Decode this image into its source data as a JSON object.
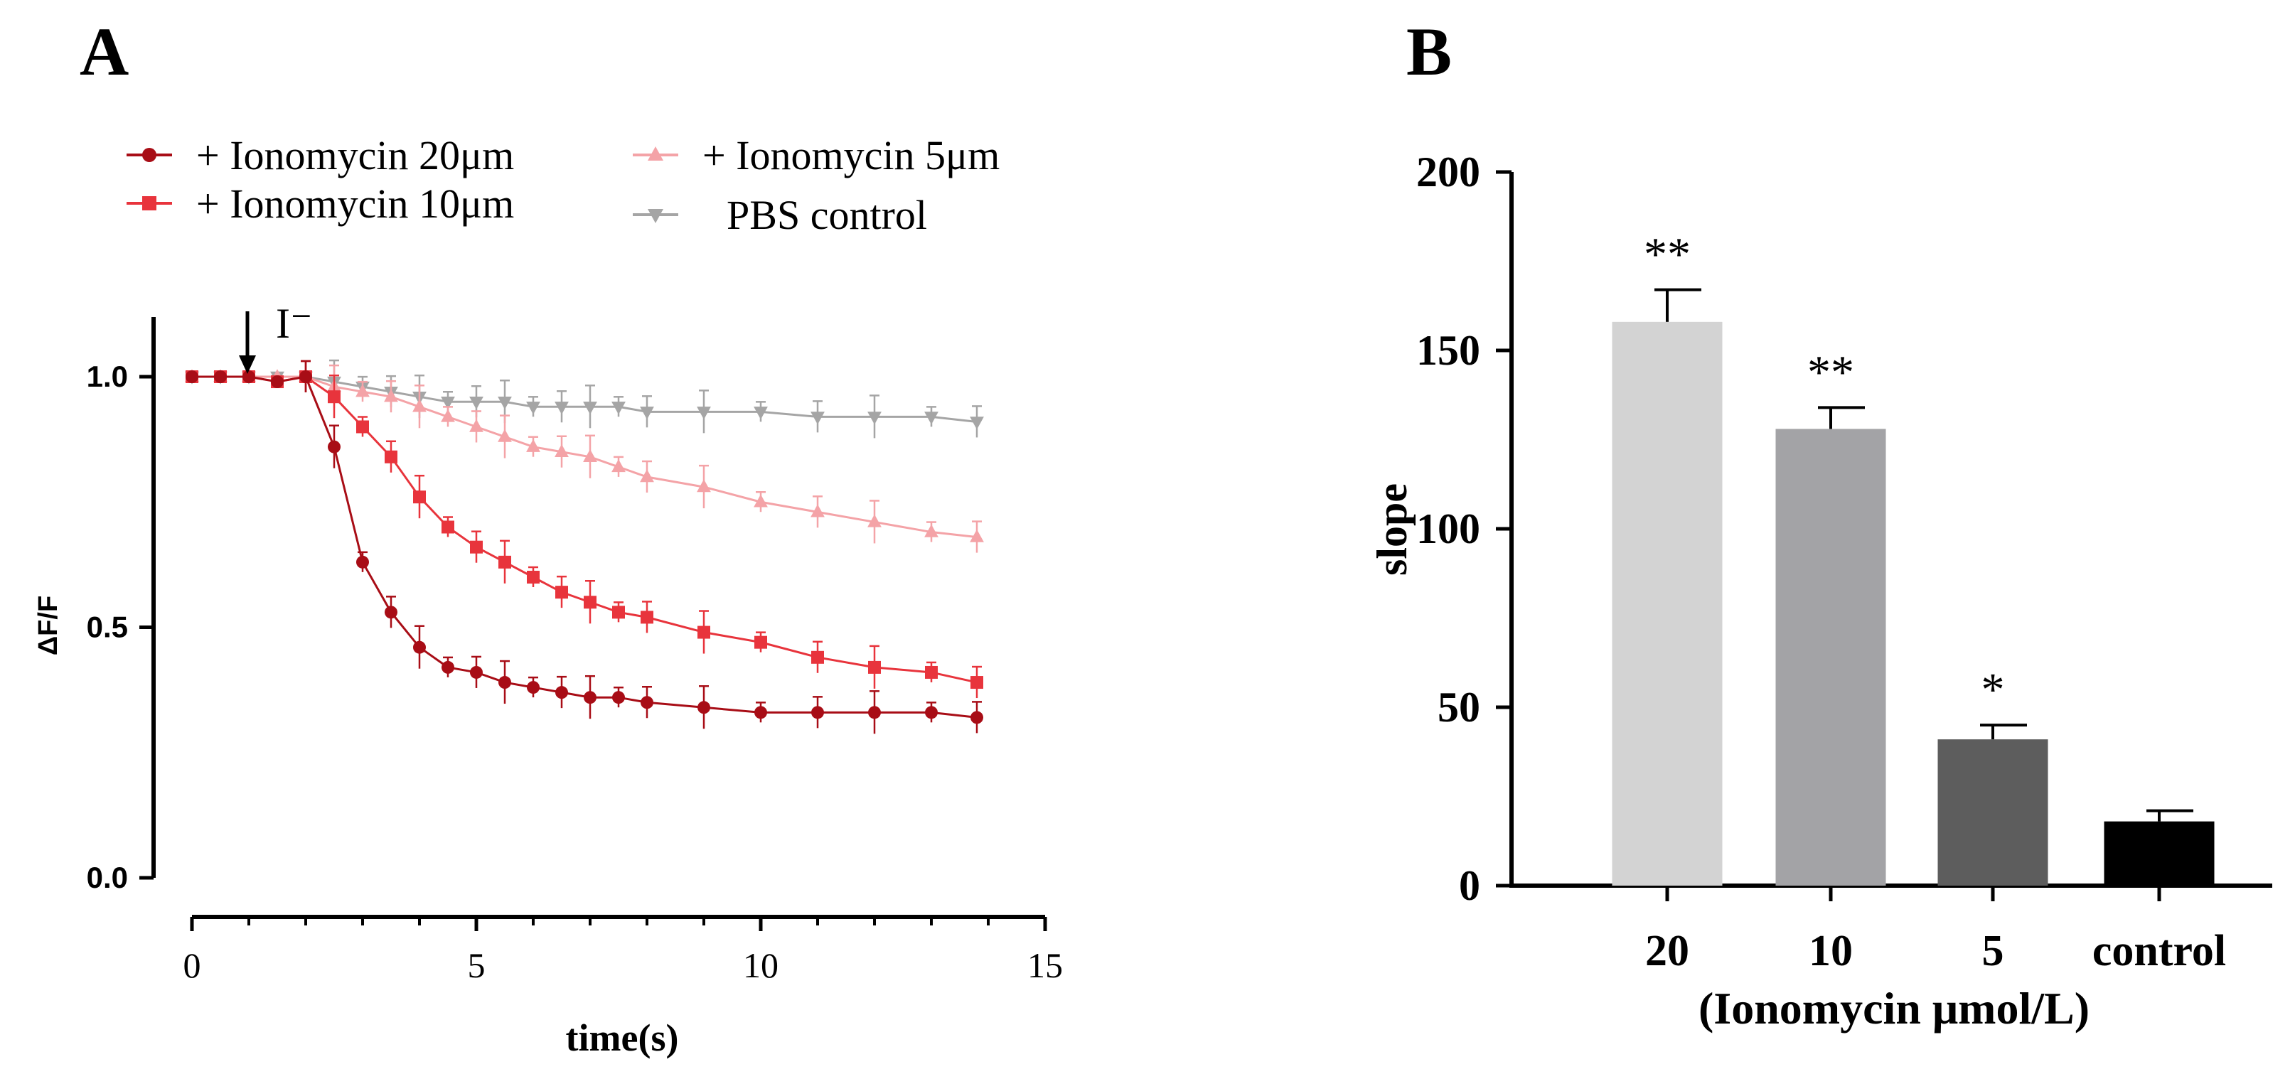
{
  "chart_data": [
    {
      "panel_label": "A",
      "type": "line",
      "xlabel": "time(s)",
      "ylabel": "ΔF/F",
      "xlim": [
        0,
        15
      ],
      "ylim": [
        0,
        1.1
      ],
      "xticks": [
        0,
        5,
        10,
        15
      ],
      "yticks": [
        "0.0",
        "0.5",
        "1.0"
      ],
      "grid": false,
      "legend_position": "top",
      "annotation": {
        "text": "I⁻",
        "x": 0.9,
        "marker": "down-arrow"
      },
      "series": [
        {
          "name": "+ Ionomycin 20μm",
          "color": "#a80d16",
          "marker": "circle",
          "x": [
            0,
            0.5,
            1,
            1.5,
            2,
            2.5,
            3,
            3.5,
            4,
            4.5,
            5,
            5.5,
            6,
            6.5,
            7,
            7.5,
            8,
            9,
            10,
            11,
            12,
            13,
            13.8
          ],
          "y": [
            1.0,
            1.0,
            1.0,
            0.99,
            1.0,
            0.86,
            0.63,
            0.53,
            0.46,
            0.42,
            0.41,
            0.39,
            0.38,
            0.37,
            0.36,
            0.36,
            0.35,
            0.34,
            0.33,
            0.33,
            0.33,
            0.33,
            0.32
          ]
        },
        {
          "name": "+ Ionomycin 10μm",
          "color": "#e8343c",
          "marker": "square",
          "x": [
            0,
            0.5,
            1,
            1.5,
            2,
            2.5,
            3,
            3.5,
            4,
            4.5,
            5,
            5.5,
            6,
            6.5,
            7,
            7.5,
            8,
            9,
            10,
            11,
            12,
            13,
            13.8
          ],
          "y": [
            1.0,
            1.0,
            1.0,
            0.99,
            1.0,
            0.96,
            0.9,
            0.84,
            0.76,
            0.7,
            0.66,
            0.63,
            0.6,
            0.57,
            0.55,
            0.53,
            0.52,
            0.49,
            0.47,
            0.44,
            0.42,
            0.41,
            0.39
          ]
        },
        {
          "name": "+ Ionomycin 5μm",
          "color": "#f4a3a7",
          "marker": "triangle-up",
          "x": [
            0,
            0.5,
            1,
            1.5,
            2,
            2.5,
            3,
            3.5,
            4,
            4.5,
            5,
            5.5,
            6,
            6.5,
            7,
            7.5,
            8,
            9,
            10,
            11,
            12,
            13,
            13.8
          ],
          "y": [
            1.0,
            1.0,
            1.0,
            1.0,
            1.0,
            0.98,
            0.97,
            0.96,
            0.94,
            0.92,
            0.9,
            0.88,
            0.86,
            0.85,
            0.84,
            0.82,
            0.8,
            0.78,
            0.75,
            0.73,
            0.71,
            0.69,
            0.68
          ]
        },
        {
          "name": "PBS control",
          "color": "#a5a5a5",
          "marker": "triangle-down",
          "x": [
            0,
            0.5,
            1,
            1.5,
            2,
            2.5,
            3,
            3.5,
            4,
            4.5,
            5,
            5.5,
            6,
            6.5,
            7,
            7.5,
            8,
            9,
            10,
            11,
            12,
            13,
            13.8
          ],
          "y": [
            1.0,
            1.0,
            1.0,
            1.0,
            1.0,
            0.99,
            0.98,
            0.97,
            0.96,
            0.95,
            0.95,
            0.95,
            0.94,
            0.94,
            0.94,
            0.94,
            0.93,
            0.93,
            0.93,
            0.92,
            0.92,
            0.92,
            0.91
          ]
        }
      ]
    },
    {
      "panel_label": "B",
      "type": "bar",
      "xlabel": "(Ionomycin μmol/L)",
      "ylabel": "slope",
      "ylim": [
        0,
        200
      ],
      "yticks": [
        "0",
        "50",
        "100",
        "150",
        "200"
      ],
      "grid": false,
      "categories": [
        "20",
        "10",
        "5",
        "control"
      ],
      "values": [
        158,
        128,
        41,
        18
      ],
      "errors": [
        9,
        6,
        4,
        3
      ],
      "significance": [
        "**",
        "**",
        "*",
        ""
      ],
      "colors": [
        "#d3d3d3",
        "#a3a3a6",
        "#5d5d5d",
        "#000000"
      ]
    }
  ]
}
